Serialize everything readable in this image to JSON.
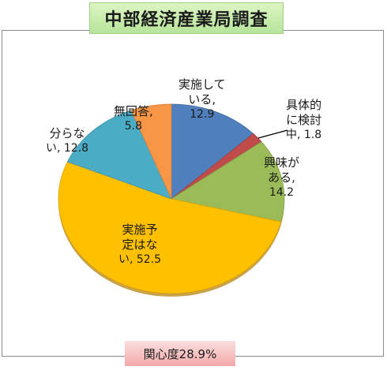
{
  "header": {
    "title": "中部経済産業局調査"
  },
  "footer": {
    "interest_label": "関心度28.9%"
  },
  "chart_data": {
    "type": "pie",
    "title": "中部経済産業局調査",
    "slices": [
      {
        "name": "実施している",
        "value": 12.9,
        "color": "#4f7fbd",
        "label_lines": [
          "実施して",
          "いる,"
        ],
        "value_text": "12.9"
      },
      {
        "name": "具体的に検討中",
        "value": 1.8,
        "color": "#bf4b4b",
        "label_lines": [
          "具体的",
          "に検討"
        ],
        "value_text": "中, 1.8"
      },
      {
        "name": "興味がある",
        "value": 14.2,
        "color": "#9bbb59",
        "label_lines": [
          "興味が",
          "ある,"
        ],
        "value_text": "14.2"
      },
      {
        "name": "実施予定はない",
        "value": 52.5,
        "color": "#ffc000",
        "label_lines": [
          "実施予",
          "定はな"
        ],
        "value_text": "い, 52.5"
      },
      {
        "name": "分からない",
        "value": 12.8,
        "color": "#4bacc6",
        "label_lines": [
          "分らな"
        ],
        "value_text": "い, 12.8"
      },
      {
        "name": "無回答",
        "value": 5.8,
        "color": "#f79646",
        "label_lines": [
          "無回答,"
        ],
        "value_text": "5.8"
      }
    ]
  }
}
